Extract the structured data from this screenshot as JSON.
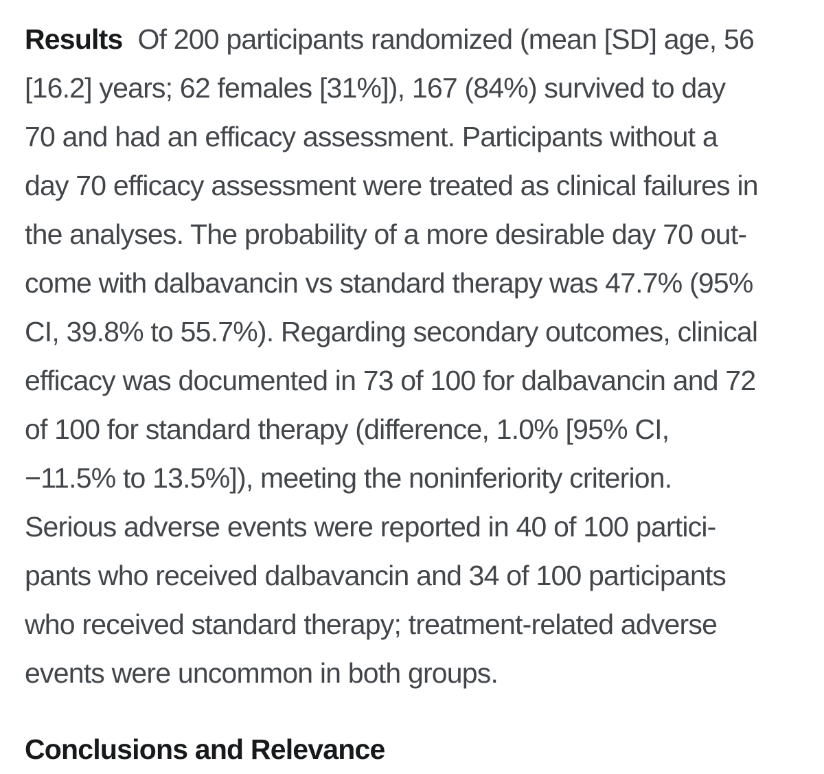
{
  "page": {
    "background": "#ffffff",
    "body_text_color": "#42464a",
    "heading_text_color": "#17191b"
  },
  "results": {
    "label": "Results",
    "lines": [
      "Of 200 participants randomized (mean [SD] age, 56",
      "[16.2] years; 62 females [31%]), 167 (84%) survived to day",
      "70 and had an efficacy assessment. Participants without a",
      "day 70 efficacy assessment were treated as clinical failures in",
      "the analyses. The probability of a more desirable day 70 out-",
      "come with dalbavancin vs standard therapy was 47.7% (95%",
      "CI, 39.8% to 55.7%). Regarding secondary outcomes, clinical",
      "efficacy was documented in 73 of 100 for dalbavancin and 72",
      "of 100 for standard therapy (difference, 1.0% [95% CI,",
      "−11.5% to 13.5%]), meeting the noninferiority criterion.",
      "Serious adverse events were reported in 40 of 100 partici-",
      "pants who received dalbavancin and 34 of 100 participants",
      "who received standard therapy; treatment-related adverse",
      "events were uncommon in both groups."
    ]
  },
  "next_section": {
    "label": "Conclusions and Relevance"
  }
}
